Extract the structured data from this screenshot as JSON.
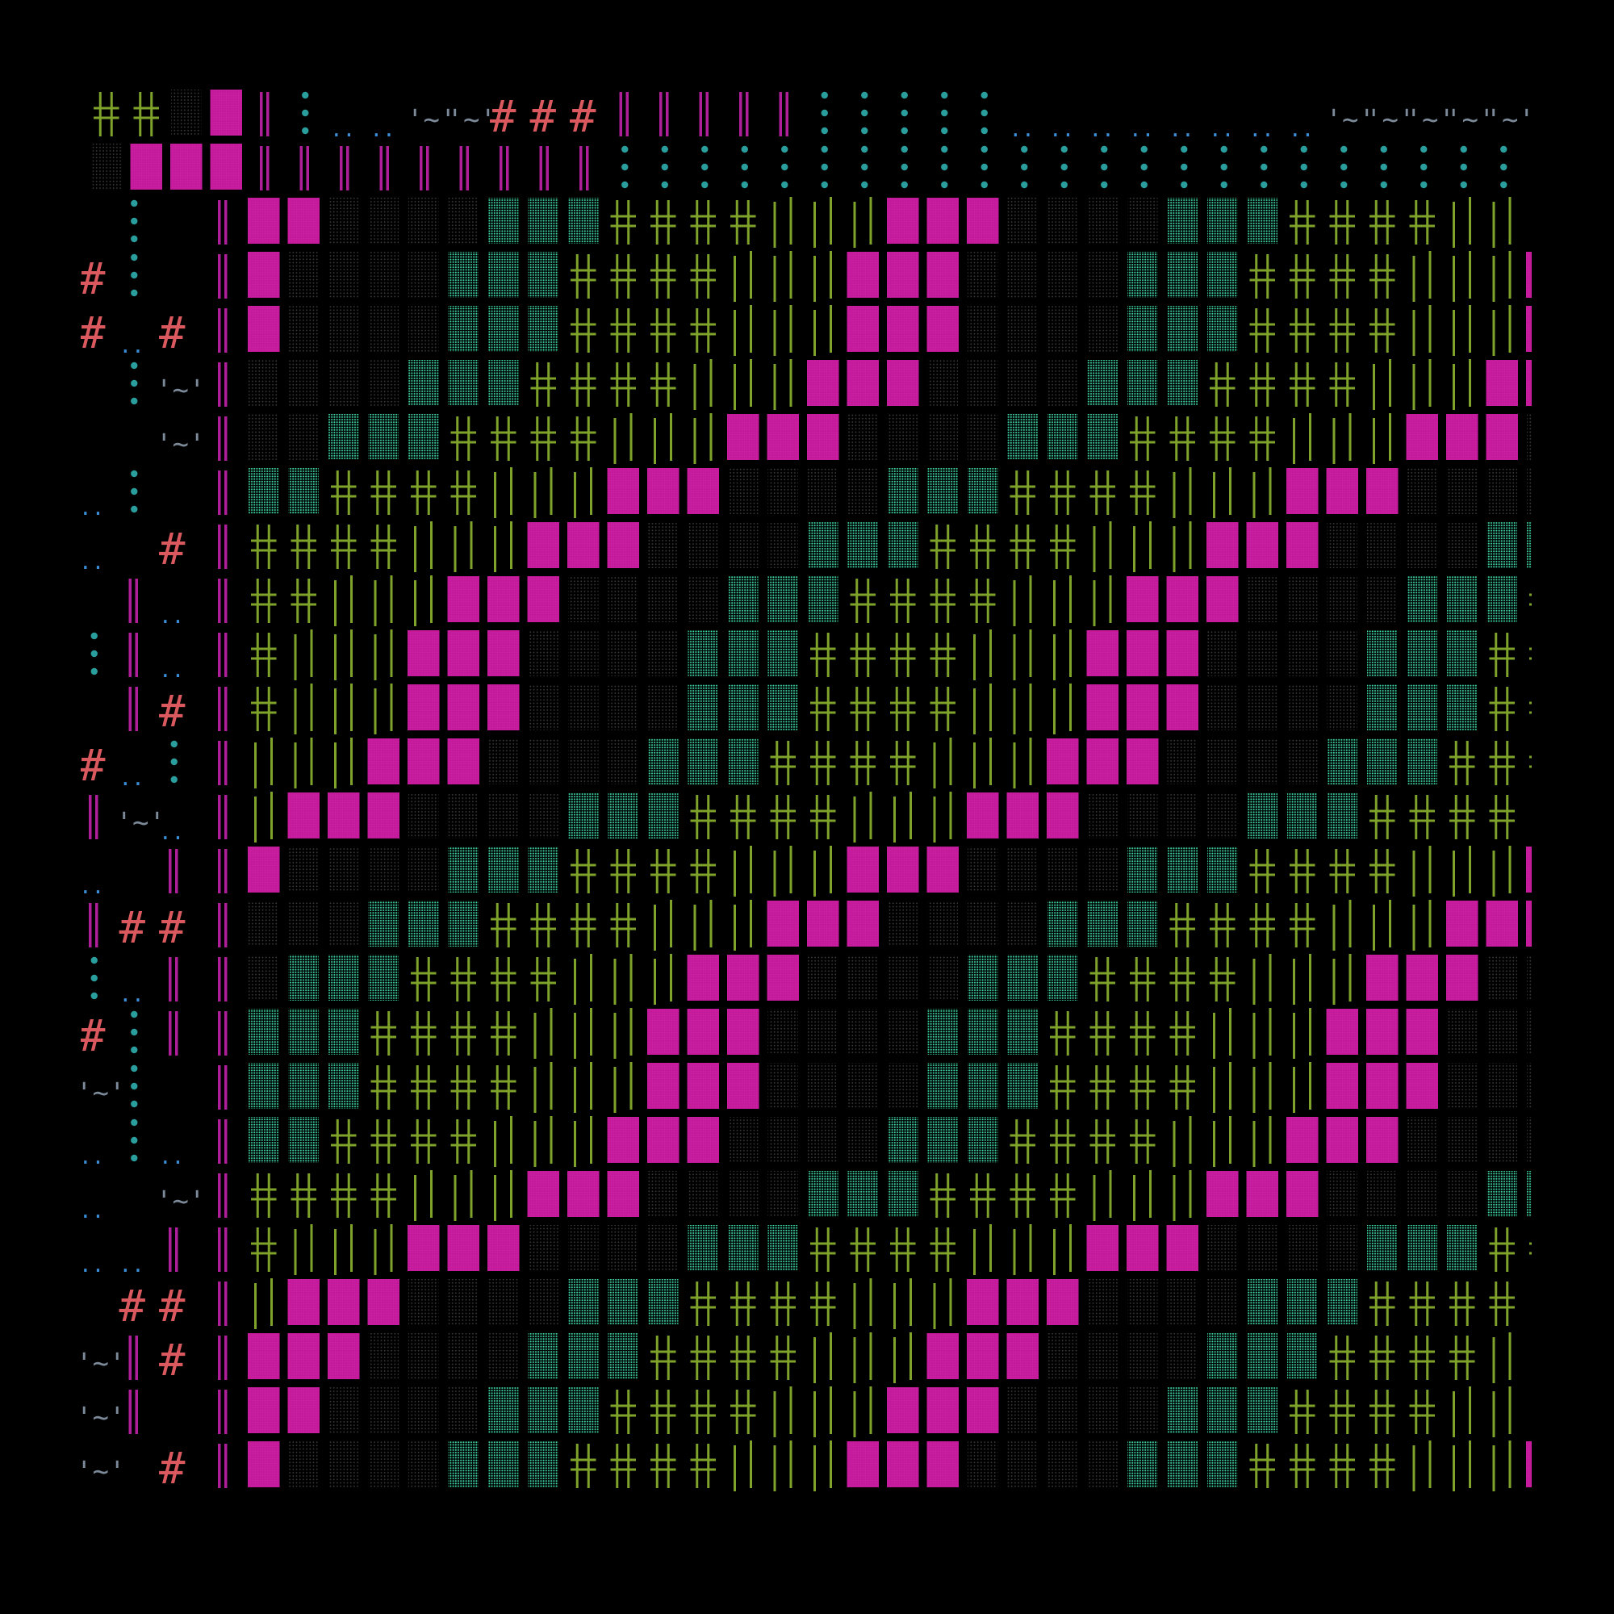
{
  "image": {
    "kind": "generative ascii glyph grid",
    "background": "#000000"
  },
  "palette": {
    "magenta_block": "#c2189a",
    "magenta_bar": "#b01f9a",
    "teal_dots": "#2a9d9d",
    "mint_stipple": "#3fd6a6",
    "dim_stipple": "#3a3a3a",
    "olive_cross": "#7fa32a",
    "coral_hash": "#d9595e",
    "slate_tilde": "#7c8a99",
    "blue_dots": "#3b8ed6"
  },
  "glyphs": {
    "hash": "#",
    "tilde": "'~'",
    "double_dot": ".."
  },
  "grid": {
    "columns": 36,
    "rows": 26,
    "header_rows": 2,
    "left_columns": 4,
    "band_cycle": [
      "magenta_block",
      "dim_stipple",
      "mint_stipple",
      "olive_cross",
      "olive_bars"
    ]
  }
}
